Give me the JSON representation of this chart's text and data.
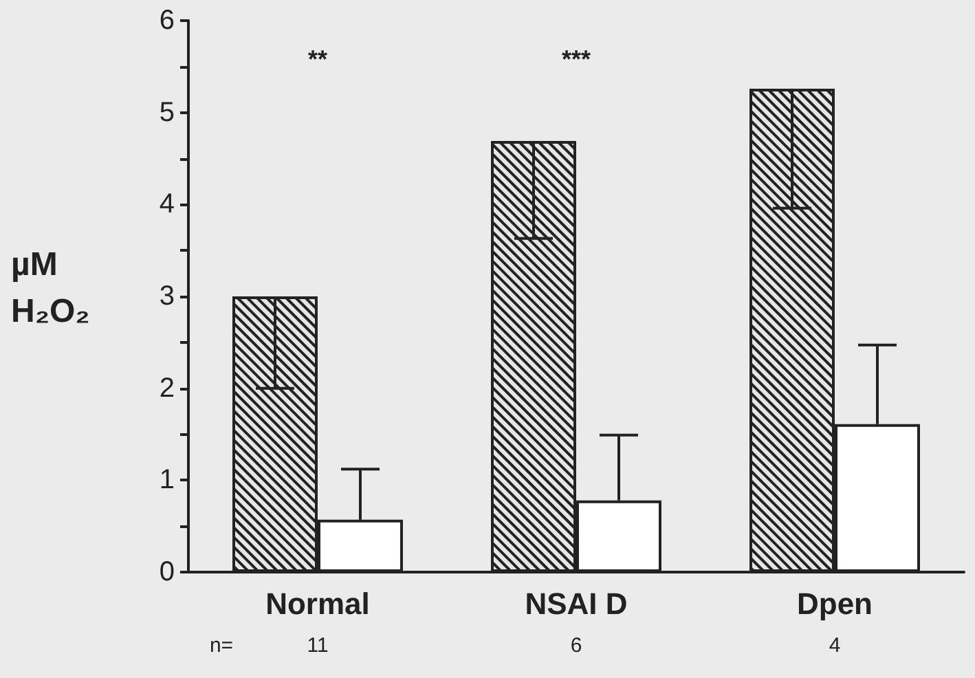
{
  "chart_data": {
    "type": "bar",
    "ylabel": "µM H₂O₂",
    "categories": [
      "Normal",
      "NSAI D",
      "Dpen"
    ],
    "series": [
      {
        "color": "#222222",
        "values": [
          3.0,
          4.69,
          5.26
        ],
        "errors": [
          [
            2.0,
            3.0
          ],
          [
            3.63,
            4.69
          ],
          [
            3.96,
            5.26
          ]
        ]
      },
      {
        "color": "#ffffff",
        "values": [
          0.57,
          0.78,
          1.61
        ],
        "errors": [
          [
            0.57,
            1.12
          ],
          [
            0.78,
            1.49
          ],
          [
            1.61,
            2.47
          ]
        ]
      }
    ],
    "ylim": [
      0,
      6
    ],
    "yticks": [
      0,
      {
        "value": 0.5,
        "label": null
      },
      1,
      {
        "value": 1.5,
        "label": null
      },
      2,
      {
        "value": 2.5,
        "label": null
      },
      3,
      {
        "value": 3.5,
        "label": null
      },
      4,
      {
        "value": 4.5,
        "label": null
      },
      5,
      {
        "value": 5.5,
        "label": null
      },
      6
    ],
    "annotations": [
      "**",
      "***",
      "n=",
      "11",
      "6",
      "4"
    ],
    "grid": false
  }
}
